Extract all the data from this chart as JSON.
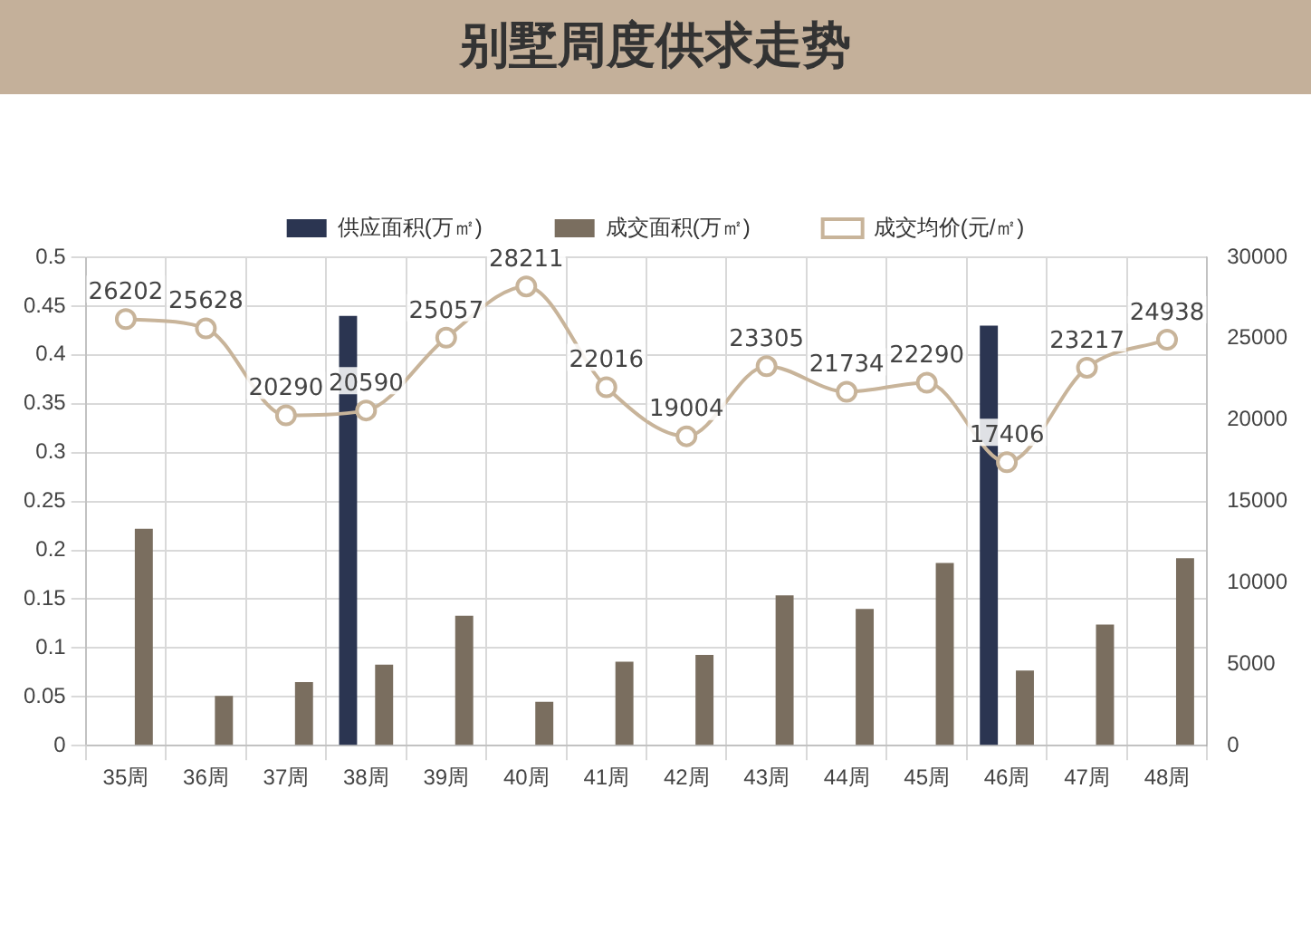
{
  "chart_data": {
    "type": "bar",
    "title": "别墅周度供求走势",
    "categories": [
      "35周",
      "36周",
      "37周",
      "38周",
      "39周",
      "40周",
      "41周",
      "42周",
      "43周",
      "44周",
      "45周",
      "46周",
      "47周",
      "48周"
    ],
    "series": [
      {
        "name": "供应面积(万㎡)",
        "color": "#2b3551",
        "values": [
          null,
          null,
          null,
          0.44,
          null,
          null,
          null,
          null,
          null,
          null,
          null,
          0.43,
          null,
          null
        ]
      },
      {
        "name": "成交面积(万㎡)",
        "color": "#7a6e5f",
        "values": [
          0.222,
          0.051,
          0.065,
          0.083,
          0.133,
          0.045,
          0.086,
          0.093,
          0.154,
          0.14,
          0.187,
          0.077,
          0.124,
          0.192
        ]
      },
      {
        "name": "成交均价(元/㎡)",
        "type": "line",
        "axis": "y2",
        "color": "#c8b49a",
        "marker": "circle",
        "values": [
          26202,
          25628,
          20290,
          20590,
          25057,
          28211,
          22016,
          19004,
          23305,
          21734,
          22290,
          17406,
          23217,
          24938
        ],
        "value_labels": [
          "26202",
          "25628",
          "20290",
          "20590",
          "25057",
          "28211",
          "22016",
          "19004",
          "23305",
          "21734",
          "22290",
          "17406",
          "23217",
          "24938"
        ]
      }
    ],
    "ylim": [
      0,
      0.5
    ],
    "yticks": [
      0,
      0.05,
      0.1,
      0.15,
      0.2,
      0.25,
      0.3,
      0.35,
      0.4,
      0.45,
      0.5
    ],
    "y2lim": [
      0,
      30000
    ],
    "y2ticks": [
      0,
      5000,
      10000,
      15000,
      20000,
      25000,
      30000
    ],
    "grid": true,
    "legend": "top"
  }
}
